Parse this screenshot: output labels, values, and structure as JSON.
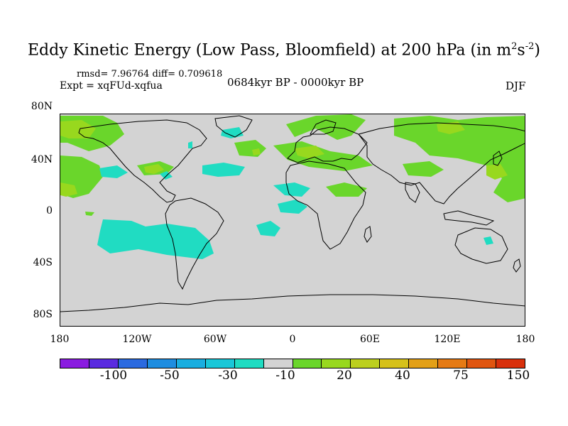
{
  "map": {
    "title_main": "Eddy Kinetic Energy (Low Pass, Bloomfield) at 200 hPa (in m",
    "title_sup1": "2",
    "title_mid": "s",
    "title_sup2": "-2",
    "title_end": ")",
    "rmsd_text": "rmsd= 7.96764 diff= 0.709618",
    "expt_text": "Expt = xqFUd-xqfua",
    "period_text": "0684kyr BP - 0000kyr BP",
    "season": "DJF",
    "lat_labels": [
      "80N",
      "40N",
      "0",
      "40S",
      "80S"
    ],
    "lon_labels": [
      "180",
      "120W",
      "60W",
      "0",
      "60E",
      "120E",
      "180"
    ],
    "colorbar_colors": [
      "#8a1be0",
      "#5a2be0",
      "#2b6ae0",
      "#1e8de0",
      "#1aaee0",
      "#1ac7d8",
      "#20dcc2",
      "#d3d3d3",
      "#6ad62b",
      "#98d81e",
      "#bccf1e",
      "#d6c11a",
      "#e3a018",
      "#e57a14",
      "#e05510",
      "#d8300c"
    ],
    "colorbar_labels": [
      "-100",
      "-50",
      "-30",
      "-10",
      "20",
      "40",
      "75",
      "150"
    ],
    "colors": {
      "land_line": "#000000",
      "background": "#d3d3d3",
      "cyan": "#20dcc2",
      "green": "#6ad62b",
      "yellowgreen": "#98d81e"
    }
  }
}
